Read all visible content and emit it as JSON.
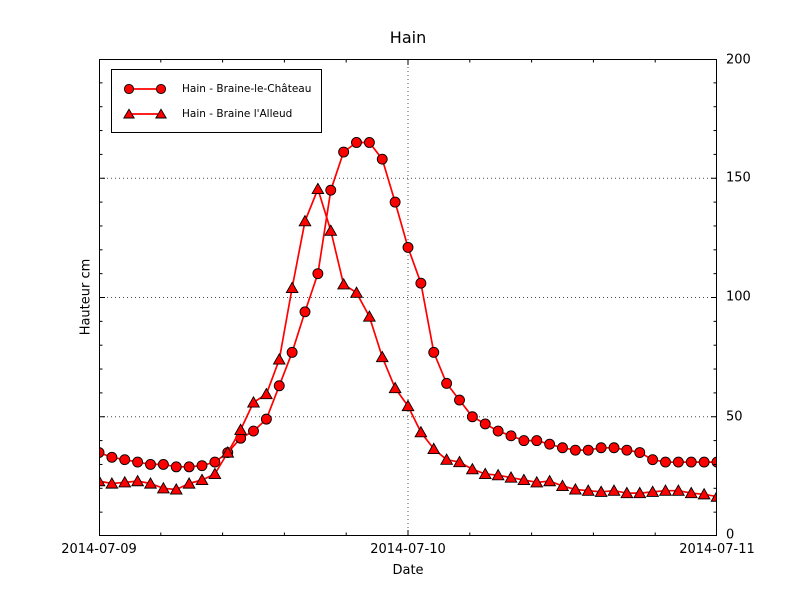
{
  "figure": {
    "background": "#ffffff"
  },
  "chart_data": {
    "type": "line",
    "title": "Hain",
    "xlabel": "Date",
    "ylabel": "Hauteur cm",
    "x_tick_labels": [
      "2014-07-09",
      "2014-07-10",
      "2014-07-11"
    ],
    "y_tick_labels": [
      "0",
      "50",
      "100",
      "150",
      "200"
    ],
    "y_major_ticks": [
      0,
      50,
      100,
      150,
      200
    ],
    "x_major_tick_hours": [
      0,
      24,
      48
    ],
    "x_minor_step_hours": 4.8,
    "y_minor_step": 10,
    "xlim_hours": [
      0,
      48
    ],
    "ylim": [
      0,
      200
    ],
    "grid": {
      "style": "dotted",
      "lines_y": [
        50,
        100,
        150
      ],
      "lines_x_hours": [
        24
      ]
    },
    "legend_position": "upper left",
    "x_unit": "hours since 2014-07-09 00:00",
    "x_hours": [
      0,
      1,
      2,
      3,
      4,
      5,
      6,
      7,
      8,
      9,
      10,
      11,
      12,
      13,
      14,
      15,
      16,
      17,
      18,
      19,
      20,
      21,
      22,
      23,
      24,
      25,
      26,
      27,
      28,
      29,
      30,
      31,
      32,
      33,
      34,
      35,
      36,
      37,
      38,
      39,
      40,
      41,
      42,
      43,
      44,
      45,
      46,
      47,
      48
    ],
    "series": [
      {
        "name": "Hain - Braine-le-Château",
        "marker": "circle",
        "color": "#ff0000",
        "edge_color": "#000000",
        "values": [
          35,
          33,
          32,
          31,
          30,
          30,
          29,
          29,
          29.5,
          31,
          35,
          41,
          44,
          49,
          63,
          77,
          94,
          110,
          145,
          161,
          165,
          165,
          158,
          140,
          121,
          106,
          77,
          64,
          57,
          50,
          47,
          44,
          42,
          40,
          40,
          38.5,
          37,
          36,
          36,
          37,
          37,
          36,
          35,
          32,
          31,
          31,
          31,
          31,
          31
        ]
      },
      {
        "name": "Hain - Braine l'Alleud",
        "marker": "triangle",
        "color": "#ff0000",
        "edge_color": "#000000",
        "values": [
          23,
          22,
          22.5,
          23,
          22,
          20,
          19.5,
          22,
          23.5,
          26,
          35,
          44.5,
          56,
          59.5,
          74,
          104,
          132,
          145.5,
          128,
          105.5,
          102,
          92,
          75,
          62,
          54.5,
          43.5,
          36.5,
          32,
          31,
          28,
          26,
          25.5,
          24.5,
          23.5,
          22.5,
          23,
          21,
          19.5,
          19,
          18.5,
          19,
          18,
          18,
          18.5,
          19,
          19,
          18,
          17.5,
          16.5
        ]
      }
    ]
  }
}
